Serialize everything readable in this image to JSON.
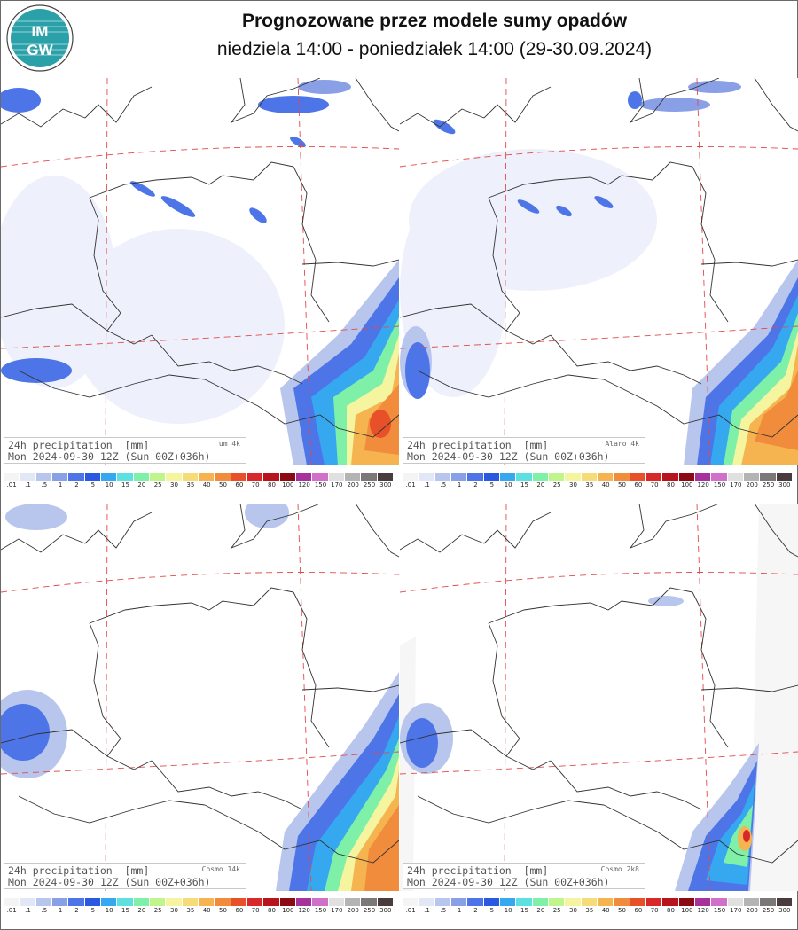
{
  "header": {
    "title": "Prognozowane przez modele sumy opadów",
    "subtitle": "niedziela 14:00 - poniedziałek 14:00 (29-30.09.2024)",
    "logo_text": "IMGW"
  },
  "colorbar": {
    "labels": [
      ".01",
      ".1",
      ".5",
      "1",
      "2",
      "5",
      "10",
      "15",
      "20",
      "25",
      "30",
      "35",
      "40",
      "50",
      "60",
      "70",
      "80",
      "100",
      "120",
      "150",
      "170",
      "200",
      "250",
      "300"
    ],
    "colors": [
      "#f4f4f4",
      "#e2e7f6",
      "#b8c6ee",
      "#8aa0e6",
      "#4d75e8",
      "#2a58e0",
      "#35a8f0",
      "#5de0e0",
      "#7ff0a8",
      "#c0f58c",
      "#f5f5a0",
      "#f5dc78",
      "#f5b450",
      "#f08c3c",
      "#e8502a",
      "#d8282a",
      "#b8141e",
      "#8c0a14",
      "#a8329c",
      "#d070c8",
      "#e0e0e0",
      "#b4b4b4",
      "#7c7878",
      "#4a3c3c"
    ]
  },
  "panels": [
    {
      "line1": "24h precipitation  [mm]",
      "model": "um 4k",
      "line2": "Mon 2024-09-30 12Z (Sun 00Z+036h)"
    },
    {
      "line1": "24h precipitation  [mm]",
      "model": "Alaro 4k",
      "line2": "Mon 2024-09-30 12Z (Sun 00Z+036h)"
    },
    {
      "line1": "24h precipitation  [mm]",
      "model": "Cosmo 14k",
      "line2": "Mon 2024-09-30 12Z (Sun 00Z+036h)"
    },
    {
      "line1": "24h precipitation  [mm]",
      "model": "Cosmo 2k8",
      "line2": "Mon 2024-09-30 12Z (Sun 00Z+036h)"
    }
  ]
}
